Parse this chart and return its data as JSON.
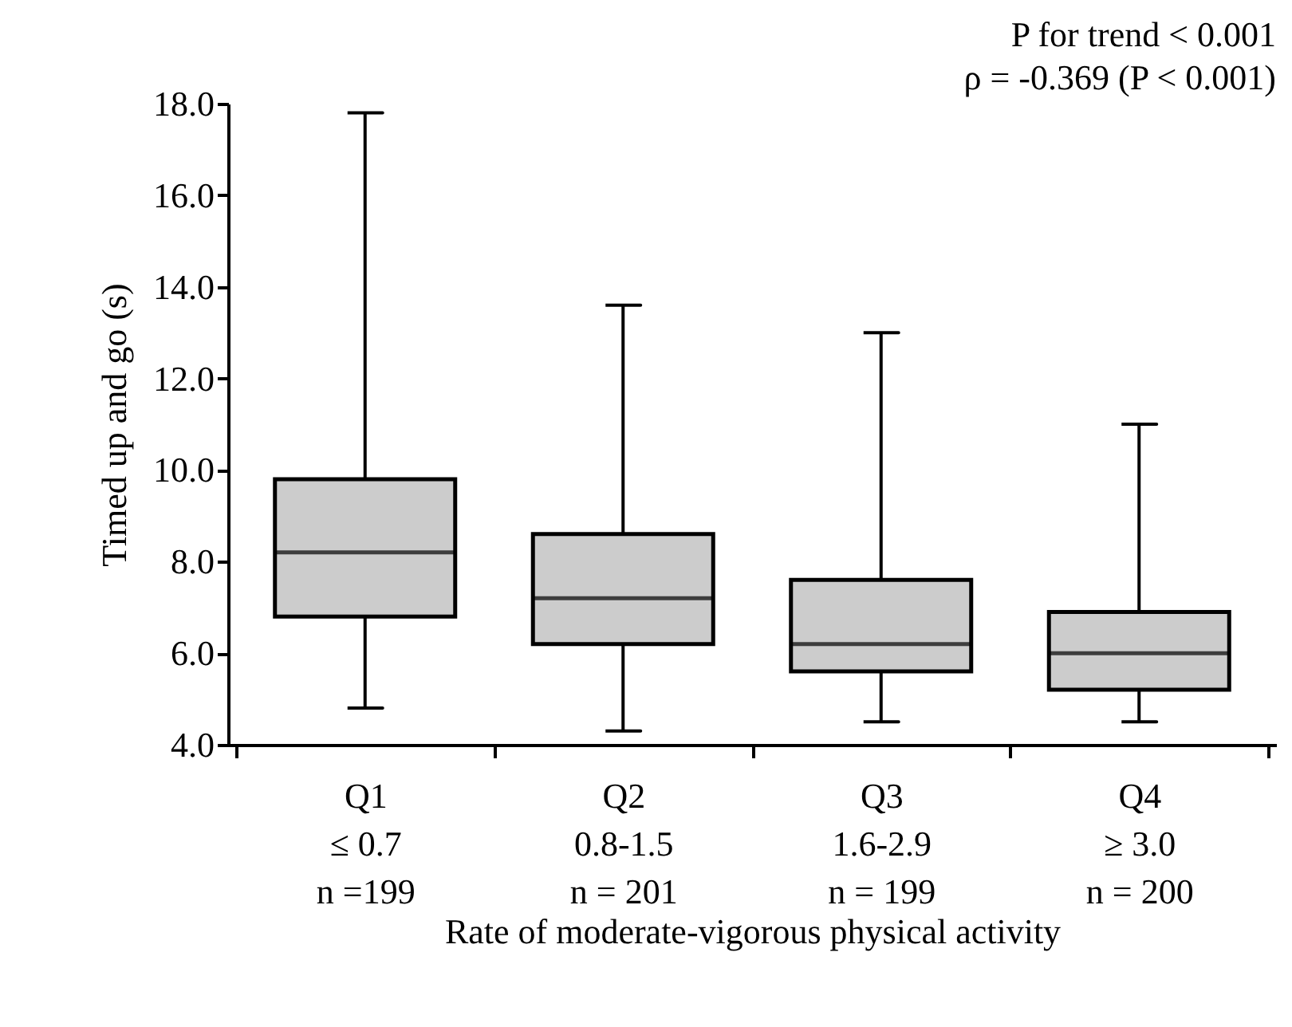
{
  "chart_data": {
    "type": "box",
    "categories": [
      "Q1\n≤ 0.7\nn =199",
      "Q2\n0.8-1.5\nn = 201",
      "Q3\n1.6-2.9\nn = 199",
      "Q4\n≥ 3.0\nn = 200"
    ],
    "series": [
      {
        "color": "#cccccc",
        "boxes": [
          {
            "low": 4.8,
            "q1": 6.8,
            "median": 8.2,
            "q3": 9.8,
            "high": 17.8
          },
          {
            "low": 4.3,
            "q1": 6.2,
            "median": 7.2,
            "q3": 8.6,
            "high": 13.6
          },
          {
            "low": 4.5,
            "q1": 5.6,
            "median": 6.2,
            "q3": 7.6,
            "high": 13.0
          },
          {
            "low": 4.5,
            "q1": 5.2,
            "median": 6.0,
            "q3": 6.9,
            "high": 11.0
          }
        ]
      }
    ],
    "xlabel": "Rate of moderate-vigorous physical activity",
    "ylabel": "Timed up and go (s)",
    "ylim": [
      4,
      18
    ],
    "yticks": [
      {
        "value": 4,
        "label": "4.0"
      },
      {
        "value": 6,
        "label": "6.0"
      },
      {
        "value": 8,
        "label": "8.0"
      },
      {
        "value": 10,
        "label": "10.0"
      },
      {
        "value": 12,
        "label": "12.0"
      },
      {
        "value": 14,
        "label": "14.0"
      },
      {
        "value": 16,
        "label": "16.0"
      },
      {
        "value": 18,
        "label": "18.0"
      }
    ],
    "annotations": [
      "P for trend < 0.001",
      "ρ = -0.369 (P < 0.001)"
    ],
    "grid": false
  }
}
